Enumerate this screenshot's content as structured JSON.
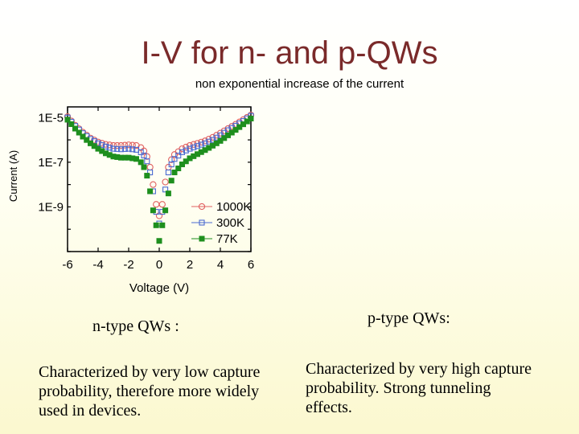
{
  "slide": {
    "title": "I-V for n- and p-QWs",
    "subtitle": "non exponential increase of the current",
    "n_heading": "n-type QWs :",
    "n_text": "Characterized by very low capture probability, therefore more widely used in devices.",
    "p_heading": "p-type QWs:",
    "p_text": "Characterized by very high capture probability. Strong tunneling effects."
  },
  "chart_data": {
    "type": "scatter",
    "xlabel": "Voltage (V)",
    "ylabel": "Current (A)",
    "xlim": [
      -6,
      6
    ],
    "ylim": [
      1e-11,
      3e-05
    ],
    "yscale": "log",
    "xticks": [
      -6,
      -4,
      -2,
      0,
      2,
      4,
      6
    ],
    "yticks": [
      {
        "value": 1e-05,
        "label": "1E-5"
      },
      {
        "value": 1e-07,
        "label": "1E-7"
      },
      {
        "value": 1e-09,
        "label": "1E-9"
      }
    ],
    "legend_position": "lower-right",
    "series": [
      {
        "name": "1000K",
        "marker": "open-circle",
        "color": "#e06060",
        "x": [
          -6,
          -5.5,
          -5,
          -4.5,
          -4,
          -3.5,
          -3,
          -2.5,
          -2,
          -1.5,
          -1.2,
          -1,
          -0.8,
          -0.6,
          -0.4,
          -0.2,
          0,
          0.2,
          0.4,
          0.6,
          0.8,
          1,
          1.5,
          2,
          2.5,
          3,
          3.5,
          4,
          4.5,
          5,
          5.5,
          6
        ],
        "y": [
          1.1e-05,
          4.5e-06,
          2.2e-06,
          1.2e-06,
          8e-07,
          6.3e-07,
          5.6e-07,
          5.6e-07,
          6e-07,
          5.6e-07,
          4.5e-07,
          3.2e-07,
          1.8e-07,
          6e-08,
          1e-08,
          1.3e-09,
          4e-10,
          1.3e-09,
          1.3e-08,
          6e-08,
          1.3e-07,
          2.2e-07,
          4e-07,
          5.6e-07,
          7e-07,
          9e-07,
          1.3e-06,
          2e-06,
          3.2e-06,
          5e-06,
          8e-06,
          1.3e-05
        ]
      },
      {
        "name": "300K",
        "marker": "open-square",
        "color": "#4a6ad0",
        "x": [
          -6,
          -5.5,
          -5,
          -4.5,
          -4,
          -3.5,
          -3,
          -2.5,
          -2,
          -1.5,
          -1.2,
          -1,
          -0.8,
          -0.6,
          -0.4,
          -0.2,
          0,
          0.2,
          0.4,
          0.6,
          0.8,
          1,
          1.5,
          2,
          2.5,
          3,
          3.5,
          4,
          4.5,
          5,
          5.5,
          6
        ],
        "y": [
          1e-05,
          4.2e-06,
          2e-06,
          1.1e-06,
          7e-07,
          5e-07,
          4e-07,
          3.8e-07,
          4e-07,
          3.6e-07,
          2.8e-07,
          2e-07,
          1.1e-07,
          3.5e-08,
          5e-09,
          6e-10,
          1.8e-10,
          6e-10,
          6e-09,
          3.5e-08,
          8e-08,
          1.4e-07,
          2.8e-07,
          4e-07,
          5.3e-07,
          7e-07,
          1e-06,
          1.6e-06,
          2.7e-06,
          4.3e-06,
          7e-06,
          1.2e-05
        ]
      },
      {
        "name": "77K",
        "marker": "filled-square",
        "color": "#1e8f1e",
        "x": [
          -6,
          -5.5,
          -5,
          -4.5,
          -4,
          -3.5,
          -3,
          -2.5,
          -2,
          -1.5,
          -1.2,
          -1,
          -0.8,
          -0.6,
          -0.4,
          -0.2,
          0,
          0.2,
          0.4,
          0.6,
          0.8,
          1,
          1.5,
          2,
          2.5,
          3,
          3.5,
          4,
          4.5,
          5,
          5.5,
          6
        ],
        "y": [
          8e-06,
          3.2e-06,
          1.4e-06,
          7e-07,
          4e-07,
          2.5e-07,
          1.8e-07,
          1.6e-07,
          1.6e-07,
          1.4e-07,
          1e-07,
          6e-08,
          2.5e-08,
          5e-09,
          7e-10,
          1.5e-10,
          3e-11,
          1.5e-10,
          7e-10,
          4e-09,
          1.5e-08,
          3.5e-08,
          8e-08,
          1.5e-07,
          2.3e-07,
          3.5e-07,
          5.5e-07,
          9e-07,
          1.6e-06,
          2.8e-06,
          5e-06,
          9e-06
        ]
      }
    ]
  }
}
